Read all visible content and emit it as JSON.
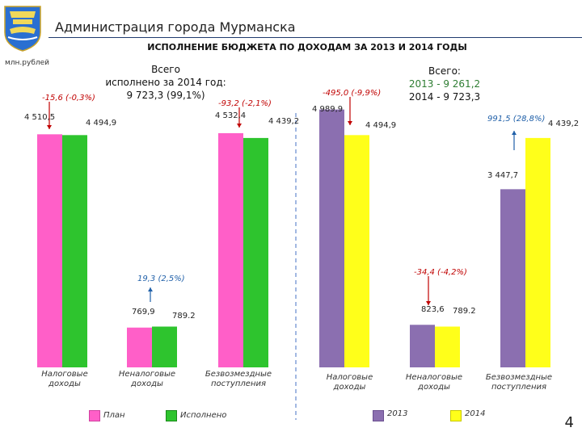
{
  "header": {
    "title": "Администрация города Мурманска",
    "slide_title": "ИСПОЛНЕНИЕ БЮДЖЕТА ПО ДОХОДАМ ЗА 2013 И 2014 ГОДЫ",
    "unit": "млн.рублей",
    "page_number": "4"
  },
  "colors": {
    "plan": "#ff5fc8",
    "executed": "#2ec42e",
    "y2013": "#8b6fb0",
    "y2014": "#ffff1a",
    "red": "#c00000",
    "blue": "#1f5fa8"
  },
  "totals_left": {
    "line1": "Всего",
    "line2": "исполнено за 2014 год:",
    "line3": "9 723,3 (99,1%)"
  },
  "totals_right": {
    "line1": "Всего:",
    "line2": "2013 - 9 261,2",
    "line3": "2014 - 9 723,3"
  },
  "chart_data": [
    {
      "type": "bar",
      "categories": [
        "Налоговые доходы",
        "Неналоговые доходы",
        "Безвозмездные поступления"
      ],
      "series": [
        {
          "name": "План",
          "values": [
            4510.5,
            769.9,
            4532.4
          ],
          "labels": [
            "4 510,5",
            "769,9",
            "4 532,4"
          ]
        },
        {
          "name": "Исполнено",
          "values": [
            4494.9,
            789.2,
            4439.2
          ],
          "labels": [
            "4 494,9",
            "789.2",
            "4 439,2"
          ]
        }
      ],
      "annotations": [
        "-15,6 (-0,3%)",
        "19,3 (2,5%)",
        "-93,2 (-2,1%)"
      ],
      "legend": "bottom"
    },
    {
      "type": "bar",
      "categories": [
        "Налоговые доходы",
        "Неналоговые доходы",
        "Безвозмездные поступления"
      ],
      "series": [
        {
          "name": "2013",
          "values": [
            4989.9,
            823.6,
            3447.7
          ],
          "labels": [
            "4 989,9",
            "823,6",
            "3 447,7"
          ]
        },
        {
          "name": "2014",
          "values": [
            4494.9,
            789.2,
            4439.2
          ],
          "labels": [
            "4 494,9",
            "789.2",
            "4 439,2"
          ]
        }
      ],
      "annotations": [
        "-495,0 (-9,9%)",
        "-34,4 (-4,2%)",
        "991,5 (28,8%)"
      ],
      "legend": "bottom"
    }
  ]
}
